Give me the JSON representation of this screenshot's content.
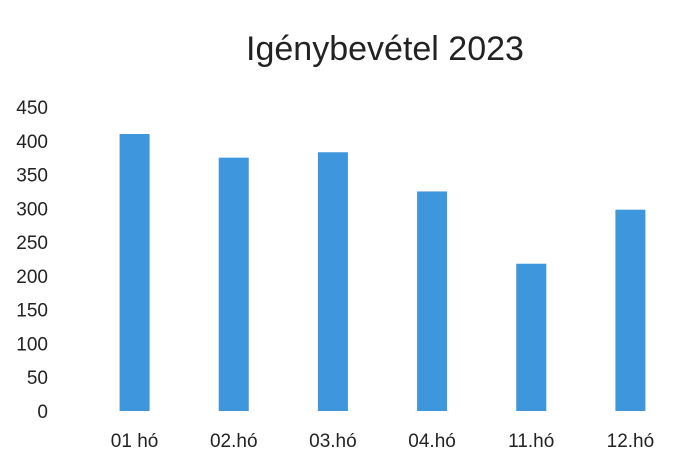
{
  "chart_data": {
    "type": "bar",
    "title": "Igénybevétel 2023",
    "categories": [
      "01 hó",
      "02.hó",
      "03.hó",
      "04.hó",
      "11.hó",
      "12.hó"
    ],
    "values": [
      410,
      375,
      383,
      325,
      218,
      298
    ],
    "xlabel": "",
    "ylabel": "",
    "ylim": [
      0,
      450
    ],
    "yticks": [
      0,
      50,
      100,
      150,
      200,
      250,
      300,
      350,
      400,
      450
    ],
    "grid": false,
    "legend": "none",
    "bar_color": "#3e96dc",
    "text_color": "#222222"
  }
}
